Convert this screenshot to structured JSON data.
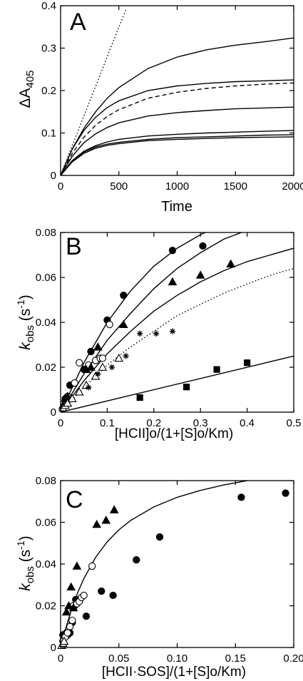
{
  "chart_data": [
    {
      "panel_label": "A",
      "type": "line",
      "xlabel": "Time",
      "ylabel_main": "ΔA",
      "ylabel_sub": "405",
      "xlim": [
        0,
        2000
      ],
      "ylim": [
        0,
        0.4
      ],
      "xticks": [
        "0",
        "500",
        "1000",
        "1500",
        "2000"
      ],
      "yticks": [
        "0",
        "0.1",
        "0.2",
        "0.3",
        "0.4"
      ],
      "series": [
        {
          "style": "dotted",
          "x": [
            0,
            100,
            200,
            300,
            400,
            500,
            560
          ],
          "y": [
            0,
            0.07,
            0.14,
            0.21,
            0.28,
            0.35,
            0.39
          ]
        },
        {
          "style": "solid",
          "x": [
            0,
            100,
            200,
            300,
            400,
            500,
            750,
            1000,
            1250,
            1500,
            1750,
            2000
          ],
          "y": [
            0,
            0.062,
            0.111,
            0.15,
            0.182,
            0.207,
            0.252,
            0.279,
            0.296,
            0.307,
            0.315,
            0.324
          ]
        },
        {
          "style": "solid",
          "x": [
            0,
            100,
            200,
            300,
            400,
            500,
            750,
            1000,
            1250,
            1500,
            1750,
            2000
          ],
          "y": [
            0,
            0.062,
            0.106,
            0.137,
            0.16,
            0.176,
            0.2,
            0.211,
            0.217,
            0.221,
            0.223,
            0.225
          ]
        },
        {
          "style": "dashed",
          "x": [
            0,
            100,
            200,
            300,
            400,
            500,
            750,
            1000,
            1250,
            1500,
            1750,
            2000
          ],
          "y": [
            0,
            0.052,
            0.09,
            0.118,
            0.139,
            0.155,
            0.182,
            0.196,
            0.205,
            0.211,
            0.215,
            0.218
          ]
        },
        {
          "style": "solid",
          "x": [
            0,
            100,
            200,
            300,
            400,
            500,
            750,
            1000,
            1250,
            1500,
            1750,
            2000
          ],
          "y": [
            0,
            0.045,
            0.077,
            0.098,
            0.113,
            0.124,
            0.14,
            0.148,
            0.153,
            0.157,
            0.159,
            0.161
          ]
        },
        {
          "style": "solid",
          "x": [
            0,
            100,
            200,
            300,
            400,
            500,
            750,
            1000,
            1250,
            1500,
            1750,
            2000
          ],
          "y": [
            0,
            0.035,
            0.057,
            0.07,
            0.079,
            0.085,
            0.093,
            0.097,
            0.1,
            0.102,
            0.104,
            0.106
          ]
        },
        {
          "style": "solid",
          "x": [
            0,
            100,
            200,
            300,
            400,
            500,
            750,
            1000,
            1250,
            1500,
            1750,
            2000
          ],
          "y": [
            0,
            0.034,
            0.055,
            0.067,
            0.074,
            0.078,
            0.085,
            0.089,
            0.091,
            0.093,
            0.095,
            0.096
          ]
        },
        {
          "style": "solid",
          "x": [
            0,
            100,
            200,
            300,
            400,
            500,
            750,
            1000,
            1250,
            1500,
            1750,
            2000
          ],
          "y": [
            0,
            0.032,
            0.052,
            0.064,
            0.071,
            0.075,
            0.082,
            0.085,
            0.087,
            0.089,
            0.09,
            0.091
          ]
        }
      ]
    },
    {
      "panel_label": "B",
      "type": "scatter",
      "xlabel": "[HCII]o/(1+[S]o/Km)",
      "ylabel_main": "k",
      "ylabel_sub": "obs",
      "ylabel_unit": " (s",
      "ylabel_exp": "-1",
      "ylabel_close": ")",
      "xlim": [
        0,
        0.5
      ],
      "ylim": [
        0,
        0.08
      ],
      "xticks": [
        "0",
        "0.1",
        "0.2",
        "0.3",
        "0.4",
        "0.5"
      ],
      "yticks": [
        "0",
        "0.02",
        "0.04",
        "0.06",
        "0.08"
      ],
      "fits": [
        {
          "style": "solid",
          "x": [
            0,
            0.05,
            0.1,
            0.15,
            0.2,
            0.25,
            0.3,
            0.32
          ],
          "y": [
            0,
            0.022,
            0.04,
            0.054,
            0.065,
            0.073,
            0.079,
            0.081
          ]
        },
        {
          "style": "solid",
          "x": [
            0,
            0.05,
            0.1,
            0.15,
            0.2,
            0.25,
            0.3,
            0.35,
            0.4
          ],
          "y": [
            0,
            0.017,
            0.032,
            0.044,
            0.055,
            0.064,
            0.071,
            0.077,
            0.081
          ]
        },
        {
          "style": "solid",
          "x": [
            0,
            0.05,
            0.1,
            0.15,
            0.2,
            0.25,
            0.3,
            0.35,
            0.4,
            0.45,
            0.5
          ],
          "y": [
            0,
            0.014,
            0.026,
            0.036,
            0.045,
            0.052,
            0.058,
            0.063,
            0.067,
            0.07,
            0.073
          ]
        },
        {
          "style": "dotted",
          "x": [
            0,
            0.05,
            0.1,
            0.15,
            0.2,
            0.25,
            0.3,
            0.35,
            0.4,
            0.45,
            0.5
          ],
          "y": [
            0,
            0.011,
            0.021,
            0.029,
            0.036,
            0.043,
            0.048,
            0.053,
            0.057,
            0.061,
            0.064
          ]
        },
        {
          "style": "solid",
          "x": [
            0,
            0.5
          ],
          "y": [
            0,
            0.025
          ]
        }
      ],
      "points": [
        {
          "marker": "filled-circle",
          "x": [
            0.01,
            0.02,
            0.05,
            0.065,
            0.1,
            0.135,
            0.24,
            0.305
          ],
          "y": [
            0.006,
            0.012,
            0.019,
            0.027,
            0.041,
            0.052,
            0.072,
            0.074
          ]
        },
        {
          "marker": "open-circle",
          "x": [
            0.01,
            0.015,
            0.03,
            0.04,
            0.06,
            0.075,
            0.085,
            0.09,
            0.105
          ],
          "y": [
            0.005,
            0.007,
            0.013,
            0.022,
            0.021,
            0.023,
            0.024,
            0.024,
            0.039
          ]
        },
        {
          "marker": "filled-triangle",
          "x": [
            0.005,
            0.01,
            0.015,
            0.055,
            0.065,
            0.08,
            0.135,
            0.24,
            0.3,
            0.365
          ],
          "y": [
            0.003,
            0.006,
            0.007,
            0.019,
            0.02,
            0.029,
            0.039,
            0.058,
            0.061,
            0.066
          ]
        },
        {
          "marker": "open-triangle",
          "x": [
            0.005,
            0.01,
            0.015,
            0.025,
            0.04,
            0.055,
            0.075,
            0.09,
            0.125
          ],
          "y": [
            0.002,
            0.003,
            0.004,
            0.006,
            0.009,
            0.012,
            0.016,
            0.02,
            0.024
          ]
        },
        {
          "marker": "asterisk",
          "x": [
            0.06,
            0.08,
            0.11,
            0.14,
            0.17,
            0.205,
            0.24
          ],
          "y": [
            0.011,
            0.017,
            0.02,
            0.025,
            0.035,
            0.035,
            0.036
          ]
        },
        {
          "marker": "filled-square",
          "x": [
            0.17,
            0.27,
            0.335,
            0.4
          ],
          "y": [
            0.0065,
            0.0112,
            0.019,
            0.022
          ]
        }
      ]
    },
    {
      "panel_label": "C",
      "type": "scatter",
      "xlabel": "[HCII·SOS]/(1+[S]o/Km)",
      "ylabel_main": "k",
      "ylabel_sub": "obs",
      "ylabel_unit": " (s",
      "ylabel_exp": "-1",
      "ylabel_close": ")",
      "xlim": [
        0,
        0.2
      ],
      "ylim": [
        0,
        0.08
      ],
      "xticks": [
        "0",
        "0.05",
        "0.10",
        "0.15",
        "0.20"
      ],
      "yticks": [
        "0",
        "0.02",
        "0.04",
        "0.06",
        "0.08"
      ],
      "fits": [
        {
          "style": "solid",
          "x": [
            0,
            0.005,
            0.01,
            0.015,
            0.02,
            0.03,
            0.04,
            0.05,
            0.06,
            0.08,
            0.1,
            0.12,
            0.14,
            0.16,
            0.18,
            0.2
          ],
          "y": [
            0,
            0.0104,
            0.0192,
            0.0267,
            0.0331,
            0.0432,
            0.0507,
            0.0564,
            0.0609,
            0.0674,
            0.072,
            0.0753,
            0.0779,
            0.08,
            0.0817,
            0.083
          ]
        }
      ],
      "points": [
        {
          "marker": "filled-circle",
          "x": [
            0.002,
            0.004,
            0.005,
            0.006,
            0.008,
            0.01,
            0.012,
            0.013,
            0.022,
            0.035,
            0.045,
            0.065,
            0.085,
            0.155,
            0.193
          ],
          "y": [
            0.006,
            0.005,
            0.007,
            0.006,
            0.007,
            0.012,
            0.02,
            0.023,
            0.015,
            0.027,
            0.025,
            0.042,
            0.053,
            0.072,
            0.074
          ]
        },
        {
          "marker": "open-circle",
          "x": [
            0.002,
            0.004,
            0.006,
            0.008,
            0.01,
            0.011,
            0.014,
            0.016,
            0.018,
            0.02,
            0.027
          ],
          "y": [
            0.003,
            0.005,
            0.007,
            0.01,
            0.013,
            0.02,
            0.021,
            0.022,
            0.024,
            0.025,
            0.039
          ]
        },
        {
          "marker": "filled-triangle",
          "x": [
            0.003,
            0.005,
            0.007,
            0.009,
            0.011,
            0.014,
            0.031,
            0.039,
            0.046
          ],
          "y": [
            0.003,
            0.017,
            0.02,
            0.029,
            0.019,
            0.039,
            0.059,
            0.061,
            0.066
          ]
        },
        {
          "marker": "open-triangle",
          "x": [
            0.001,
            0.002,
            0.003
          ],
          "y": [
            0.001,
            0.002,
            0.003
          ]
        }
      ]
    }
  ]
}
